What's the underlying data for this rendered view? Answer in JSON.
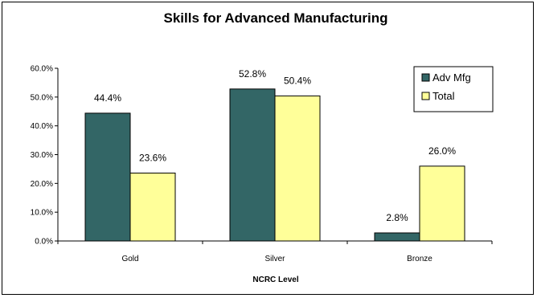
{
  "chart_data": {
    "type": "bar",
    "title": "Skills for Advanced Manufacturing",
    "xlabel": "NCRC Level",
    "ylabel": "",
    "categories": [
      "Gold",
      "Silver",
      "Bronze"
    ],
    "series": [
      {
        "name": "Adv Mfg",
        "values": [
          44.4,
          52.8,
          2.8
        ],
        "labels": [
          "44.4%",
          "52.8%",
          "2.8%"
        ],
        "color": "#336666"
      },
      {
        "name": "Total",
        "values": [
          23.6,
          50.4,
          26.0
        ],
        "labels": [
          "23.6%",
          "50.4%",
          "26.0%"
        ],
        "color": "#ffff99"
      }
    ],
    "ylim": [
      0,
      60
    ],
    "yticks": [
      "0.0%",
      "10.0%",
      "20.0%",
      "30.0%",
      "40.0%",
      "50.0%",
      "60.0%"
    ],
    "grid": false,
    "legend_position": "top-right"
  }
}
